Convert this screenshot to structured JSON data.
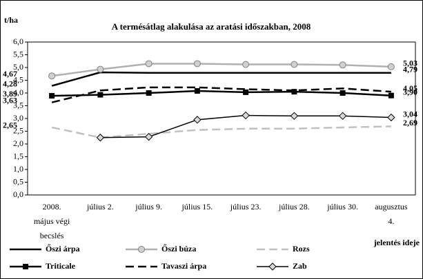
{
  "chart_data": {
    "type": "line",
    "title": "A termésátlag alakulása az aratási időszakban, 2008",
    "y_label": "t/ha",
    "x_label": "jelentés ideje",
    "categories": [
      "2008. május végi becslés",
      "július 2.",
      "július 9.",
      "július 15.",
      "július 23.",
      "július 28.",
      "július 30.",
      "augusztus 4."
    ],
    "ylim": [
      0,
      6
    ],
    "yticks": [
      {
        "value": 0,
        "label": "0,0"
      },
      {
        "value": 0.5,
        "label": "0,5"
      },
      {
        "value": 1,
        "label": "1,0"
      },
      {
        "value": 1.5,
        "label": "1,5"
      },
      {
        "value": 2,
        "label": "2,0"
      },
      {
        "value": 2.5,
        "label": "2,5"
      },
      {
        "value": 3,
        "label": "3,0"
      },
      {
        "value": 3.5,
        "label": "3,5"
      },
      {
        "value": 4,
        "label": "4,0"
      },
      {
        "value": 4.5,
        "label": "4,5"
      },
      {
        "value": 5,
        "label": "5,0"
      },
      {
        "value": 5.5,
        "label": "5,5"
      },
      {
        "value": 6,
        "label": "6,0"
      }
    ],
    "grid": false,
    "series": [
      {
        "name": "Őszi árpa",
        "color": "#000000",
        "width": 2.5,
        "dash": false,
        "marker": "none",
        "values": [
          4.28,
          4.81,
          4.79,
          4.79,
          4.79,
          4.79,
          4.79,
          4.79
        ],
        "value_labels": [
          "4,28",
          null,
          null,
          null,
          null,
          null,
          null,
          "4,79"
        ]
      },
      {
        "name": "Őszi búza",
        "color": "#b0b0b0",
        "width": 2.5,
        "dash": false,
        "marker": "circle",
        "values": [
          4.67,
          4.93,
          5.15,
          5.15,
          5.12,
          5.12,
          5.1,
          5.03
        ],
        "value_labels": [
          "4,67",
          null,
          null,
          null,
          null,
          null,
          null,
          "5,03"
        ]
      },
      {
        "name": "Rozs",
        "color": "#c0c0c0",
        "width": 2.5,
        "dash": true,
        "marker": "none",
        "values": [
          2.65,
          2.25,
          2.4,
          2.55,
          2.6,
          2.6,
          2.65,
          2.69
        ],
        "value_labels": [
          "2,65",
          null,
          null,
          null,
          null,
          null,
          null,
          "2,69"
        ]
      },
      {
        "name": "Triticale",
        "color": "#000000",
        "width": 2.5,
        "dash": false,
        "marker": "square",
        "values": [
          3.89,
          3.93,
          4.0,
          4.08,
          4.03,
          4.05,
          4.0,
          3.9
        ],
        "value_labels": [
          "3,89",
          null,
          null,
          null,
          null,
          null,
          null,
          "3,90"
        ]
      },
      {
        "name": "Tavaszi árpa",
        "color": "#000000",
        "width": 2.5,
        "dash": true,
        "marker": "none",
        "values": [
          3.63,
          4.1,
          4.22,
          4.22,
          4.15,
          4.1,
          4.18,
          4.05
        ],
        "value_labels": [
          "3,63",
          null,
          null,
          null,
          null,
          null,
          null,
          "4,05"
        ]
      },
      {
        "name": "Zab",
        "color": "#000000",
        "width": 1.5,
        "dash": false,
        "marker": "diamond",
        "values": [
          null,
          2.25,
          2.28,
          2.95,
          3.12,
          3.1,
          3.1,
          3.04
        ],
        "value_labels": [
          null,
          null,
          null,
          null,
          null,
          null,
          null,
          "3,04"
        ]
      }
    ]
  }
}
